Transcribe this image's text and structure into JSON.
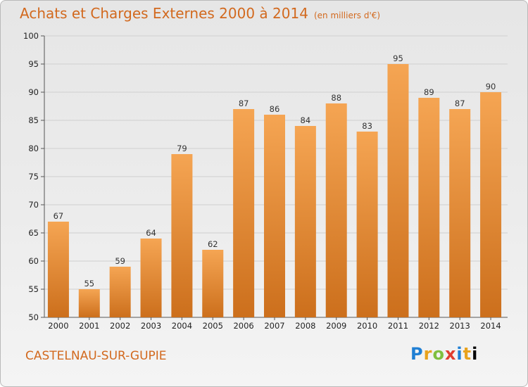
{
  "header": {
    "title": "Achats et Charges Externes 2000 à 2014",
    "subtitle": "(en milliers d'€)"
  },
  "footer": {
    "place": "CASTELNAU-SUR-GUPIE",
    "logo_letters": [
      "P",
      "r",
      "o",
      "x",
      "i",
      "t",
      "i"
    ]
  },
  "colors": {
    "bar_top": "#f5a553",
    "bar_bottom": "#cc6f1c",
    "title": "#d2691e",
    "grid": "#cfcfcf"
  },
  "chart_data": {
    "type": "bar",
    "categories": [
      "2000",
      "2001",
      "2002",
      "2003",
      "2004",
      "2005",
      "2006",
      "2007",
      "2008",
      "2009",
      "2010",
      "2011",
      "2012",
      "2013",
      "2014"
    ],
    "values": [
      67,
      55,
      59,
      64,
      79,
      62,
      87,
      86,
      84,
      88,
      83,
      95,
      89,
      87,
      90
    ],
    "ylim": [
      50,
      100
    ],
    "yticks": [
      50,
      55,
      60,
      65,
      70,
      75,
      80,
      85,
      90,
      95,
      100
    ],
    "grid": true,
    "data_labels": true
  }
}
